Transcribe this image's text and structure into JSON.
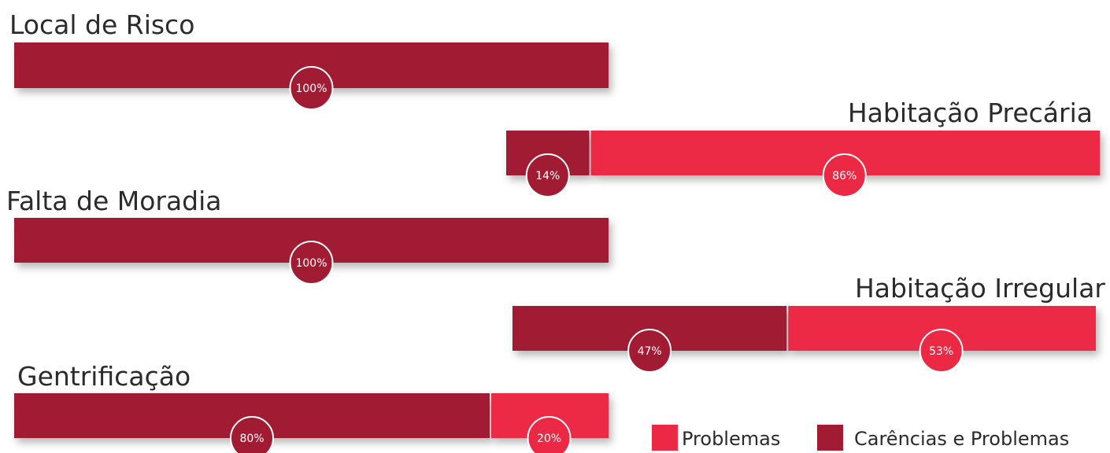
{
  "colors": {
    "carencias_problemas": "#A11B33",
    "problemas": "#EC2944",
    "badge_border": "#ffffff",
    "text": "#2b2b2b"
  },
  "chart_data": {
    "type": "bar",
    "orientation": "horizontal",
    "stacked": true,
    "unit": "%",
    "categories": [
      "Local de Risco",
      "Habitação Precária",
      "Falta de Moradia",
      "Habitação Irregular",
      "Gentrificação"
    ],
    "series": [
      {
        "name": "Carências e Problemas",
        "color": "#A11B33",
        "values": [
          100,
          14,
          100,
          47,
          80
        ]
      },
      {
        "name": "Problemas",
        "color": "#EC2944",
        "values": [
          0,
          86,
          0,
          53,
          20
        ]
      }
    ],
    "data_labels": [
      [
        "100%",
        ""
      ],
      [
        "14%",
        "86%"
      ],
      [
        "100%",
        ""
      ],
      [
        "47%",
        "53%"
      ],
      [
        "80%",
        "20%"
      ]
    ],
    "legend": {
      "placement": "bottom-right",
      "items": [
        {
          "label": "Problemas",
          "color": "#EC2944"
        },
        {
          "label": "Carências e Problemas",
          "color": "#A11B33"
        }
      ]
    },
    "grid": false
  }
}
